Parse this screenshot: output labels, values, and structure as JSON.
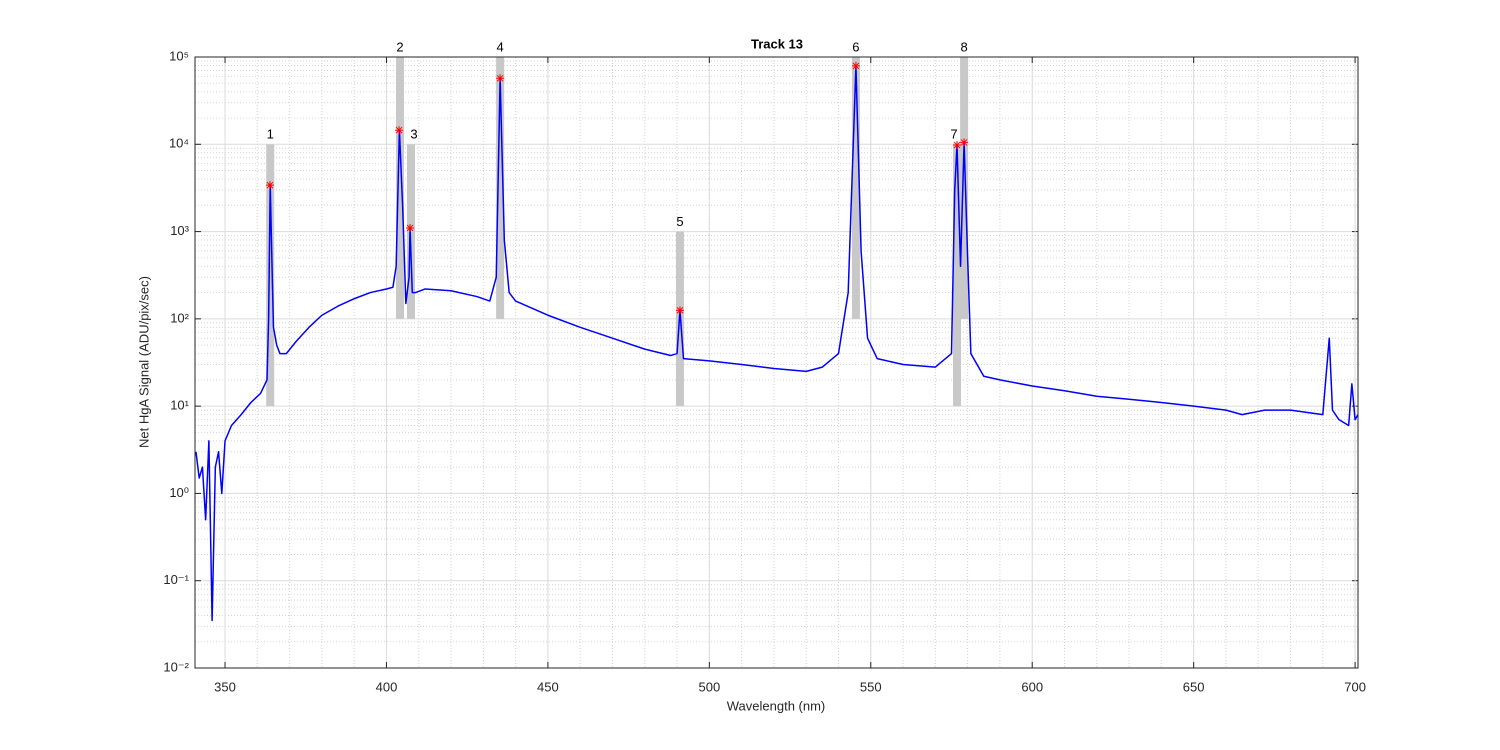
{
  "chart_data": {
    "type": "line",
    "title": "Track 13",
    "xlabel": "Wavelength (nm)",
    "ylabel": "Net HgA Signal (ADU/pix/sec)",
    "color": "#0000ff",
    "log_y": true,
    "grid": true,
    "minor_grid": true,
    "xlim": [
      340.7,
      700.9
    ],
    "ylim": [
      0.01,
      100000
    ],
    "xticks": [
      350,
      400,
      450,
      500,
      550,
      600,
      650,
      700
    ],
    "yticks": [
      {
        "value": 0.01,
        "label": "10⁻²"
      },
      {
        "value": 0.1,
        "label": "10⁻¹"
      },
      {
        "value": 1,
        "label": "10⁰"
      },
      {
        "value": 10,
        "label": "10¹"
      },
      {
        "value": 100,
        "label": "10²"
      },
      {
        "value": 1000,
        "label": "10³"
      },
      {
        "value": 10000,
        "label": "10⁴"
      },
      {
        "value": 100000,
        "label": "10⁵"
      }
    ],
    "x": [
      341,
      342,
      343,
      344,
      345,
      346,
      347,
      348,
      349,
      350,
      352,
      355,
      358,
      361,
      363,
      363.5,
      364,
      364.5,
      365,
      366,
      367,
      369,
      372,
      376,
      380,
      385,
      390,
      395,
      400,
      402,
      403,
      404,
      405,
      406,
      407,
      407.3,
      408,
      409,
      412,
      420,
      428,
      432,
      434,
      435.2,
      436.5,
      438,
      440,
      450,
      460,
      470,
      480,
      488,
      490,
      490.9,
      492,
      500,
      510,
      520,
      530,
      535,
      540,
      543,
      545.4,
      547,
      549,
      552,
      560,
      570,
      575,
      576,
      576.7,
      577.8,
      578.9,
      580,
      581,
      585,
      590,
      600,
      610,
      620,
      630,
      640,
      650,
      660,
      665,
      672,
      680,
      690,
      692,
      693,
      695,
      698,
      699,
      700,
      700.9
    ],
    "values": [
      3,
      1.5,
      2,
      0.5,
      4,
      0.035,
      2,
      3,
      1,
      4,
      6,
      8,
      11,
      14,
      20,
      100,
      3400,
      500,
      80,
      50,
      40,
      40,
      55,
      80,
      110,
      140,
      170,
      200,
      220,
      230,
      400,
      14500,
      2000,
      150,
      300,
      1100,
      200,
      200,
      220,
      210,
      180,
      160,
      300,
      57000,
      800,
      200,
      160,
      110,
      80,
      60,
      45,
      38,
      40,
      125,
      35,
      33,
      30,
      27,
      25,
      28,
      40,
      200,
      79000,
      600,
      60,
      35,
      30,
      28,
      40,
      3000,
      9800,
      400,
      10500,
      500,
      40,
      22,
      20,
      17,
      15,
      13,
      12,
      11,
      10,
      9,
      8,
      9,
      9,
      8,
      60,
      9,
      7,
      6,
      18,
      7,
      8
    ],
    "peaks": {
      "color": "#ff0000",
      "x": [
        363.9,
        403.9,
        407.3,
        435.2,
        490.9,
        545.4,
        576.7,
        578.9
      ],
      "y": [
        3400,
        14500,
        1100,
        57000,
        125,
        79000,
        9800,
        10500
      ]
    },
    "bands": {
      "color": "#c8c8c8",
      "labels": [
        "1",
        "2",
        "3",
        "4",
        "5",
        "6",
        "7",
        "8"
      ],
      "x": [
        364,
        404.2,
        407.6,
        435.2,
        490.9,
        545.4,
        576.7,
        578.9
      ],
      "low": [
        10,
        100,
        100,
        100,
        10,
        100,
        10,
        100
      ],
      "high": [
        10000,
        100000,
        10000,
        100000,
        1000,
        100000,
        10000,
        100000
      ]
    }
  }
}
